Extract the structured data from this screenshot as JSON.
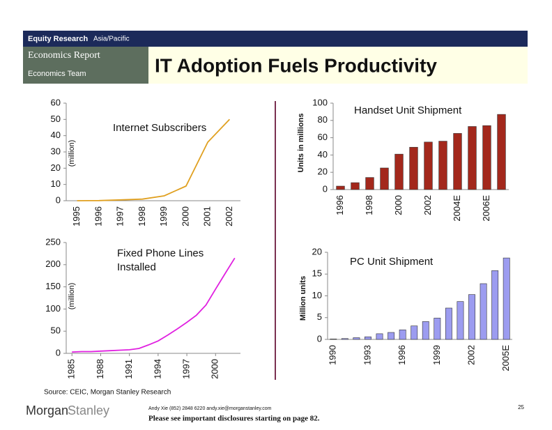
{
  "header": {
    "division": "Equity Research",
    "region": "Asia/Pacific",
    "report": "Economics Report",
    "team": "Economics Team",
    "title": "IT Adoption Fuels Productivity"
  },
  "chart_data": [
    {
      "type": "line",
      "title": "Internet Subscribers",
      "y_label": "(million)",
      "categories": [
        "1995",
        "1996",
        "1997",
        "1998",
        "1999",
        "2000",
        "2001",
        "2002"
      ],
      "series": [
        {
          "name": "Internet Subscribers",
          "color": "#e0a020",
          "values": [
            0,
            0.1,
            0.5,
            1,
            3,
            9,
            36,
            50
          ]
        }
      ],
      "ylim": [
        0,
        60
      ],
      "yticks": [
        0,
        10,
        20,
        30,
        40,
        50,
        60
      ]
    },
    {
      "type": "bar",
      "title": "Handset Unit Shipment",
      "y_label": "Units in millions",
      "categories": [
        "1996",
        null,
        "1998",
        null,
        "2000",
        null,
        "2002",
        null,
        "2004E",
        null,
        "2006E",
        null
      ],
      "series": [
        {
          "name": "Handset Unit Shipment",
          "color": "#a3281c",
          "values": [
            4,
            8,
            14,
            25,
            41,
            49,
            55,
            56,
            65,
            73,
            74,
            87
          ]
        }
      ],
      "ylim": [
        0,
        100
      ],
      "yticks": [
        0,
        20,
        40,
        60,
        80,
        100
      ]
    },
    {
      "type": "line",
      "title": "Fixed Phone Lines Installed",
      "y_label": "(million)",
      "x": [
        1985,
        1986,
        1987,
        1988,
        1989,
        1990,
        1991,
        1992,
        1993,
        1994,
        1995,
        1996,
        1997,
        1998,
        1999,
        2000,
        2001,
        2002
      ],
      "series": [
        {
          "name": "Fixed Phone Lines Installed",
          "color": "#e020e0",
          "values": [
            3,
            4,
            4,
            5,
            6,
            7,
            8,
            11,
            19,
            28,
            41,
            55,
            70,
            86,
            109,
            145,
            180,
            215
          ]
        }
      ],
      "xlim": [
        1984.4,
        2002.6
      ],
      "xticks": [
        1985,
        1988,
        1991,
        1994,
        1997,
        2000
      ],
      "ylim": [
        0,
        250
      ],
      "yticks": [
        0,
        50,
        100,
        150,
        200,
        250
      ]
    },
    {
      "type": "bar",
      "title": "PC Unit Shipment",
      "y_label": "Million units",
      "categories": [
        "1990",
        null,
        null,
        "1993",
        null,
        null,
        "1996",
        null,
        null,
        "1999",
        null,
        null,
        "2002",
        null,
        null,
        "2005E"
      ],
      "series": [
        {
          "name": "PC Unit Shipment",
          "color": "#9c9cf0",
          "values": [
            0.1,
            0.2,
            0.4,
            0.6,
            1.3,
            1.6,
            2.2,
            3.1,
            4.1,
            4.9,
            7.2,
            8.7,
            10.3,
            12.8,
            15.8,
            18.7
          ]
        }
      ],
      "ylim": [
        0,
        20
      ],
      "yticks": [
        0,
        5,
        10,
        15,
        20
      ]
    }
  ],
  "source": "Source: CEIC, Morgan Stanley Research",
  "footer": {
    "logo_first": "Morgan",
    "logo_second": "Stanley",
    "contact": "Andy Xie (852) 2848 6220 andy.xie@morganstanley.com",
    "disclosure": "Please see important disclosures starting on page 82.",
    "page": 25
  }
}
